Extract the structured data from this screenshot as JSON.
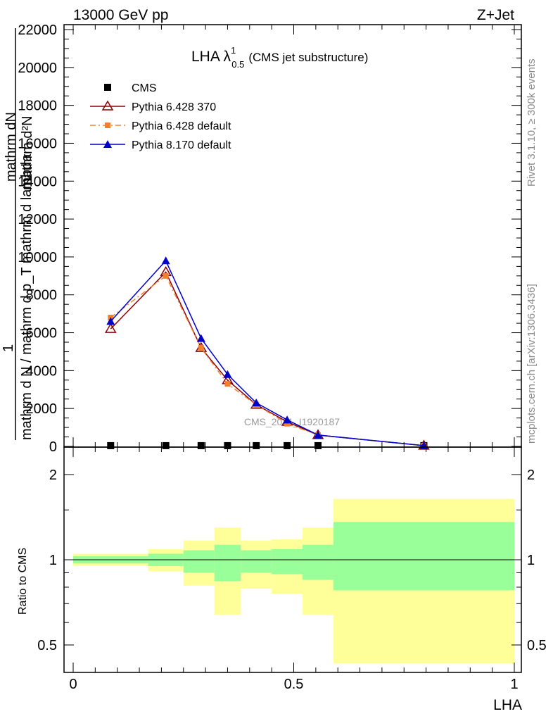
{
  "header": {
    "energy_label": "13000 GeV pp",
    "process_label": "Z+Jet",
    "plot_title_main": "LHA λ",
    "plot_title_sup": "1",
    "plot_title_sub": "0.5",
    "plot_title_note": "(CMS jet substructure)"
  },
  "side_labels": {
    "rivet": "Rivet 3.1.10, ≥ 300k events",
    "mcplots": "mcplots.cern.ch [arXiv:1306.3436]"
  },
  "watermark": "CMS_2021_I1920187",
  "ylabel_top": {
    "line1": "mathrm d²N",
    "line2": "1",
    "numerator": "mathrm dN",
    "denominator": "mathrm d N / mathrm d p_T mathrm d lambda"
  },
  "ylabel_ratio": "Ratio to CMS",
  "xlabel": "LHA",
  "legend": [
    {
      "name": "CMS",
      "marker": "square",
      "color": "#000000",
      "line": "none"
    },
    {
      "name": "Pythia 6.428 370",
      "marker": "open-triangle",
      "color": "#8b0000",
      "line": "solid"
    },
    {
      "name": "Pythia 6.428 default",
      "marker": "square-small",
      "color": "#f08030",
      "line": "dashdot"
    },
    {
      "name": "Pythia 8.170 default",
      "marker": "triangle",
      "color": "#0000cc",
      "line": "solid"
    }
  ],
  "chart_data": [
    {
      "type": "line",
      "xlim": [
        0,
        1
      ],
      "ylim": [
        0,
        22000
      ],
      "y_tick_labels": [
        "0",
        "2000",
        "4000",
        "6000",
        "8000",
        "10000",
        "12000",
        "14000",
        "16000",
        "18000",
        "20000",
        "22000"
      ],
      "y_ticks": [
        0,
        2000,
        4000,
        6000,
        8000,
        10000,
        12000,
        14000,
        16000,
        18000,
        20000,
        22000
      ],
      "x": [
        0.085,
        0.21,
        0.29,
        0.35,
        0.415,
        0.485,
        0.555,
        0.795
      ],
      "series": [
        {
          "name": "CMS",
          "values": [
            40,
            40,
            40,
            40,
            40,
            40,
            40,
            40
          ],
          "color": "#000000"
        },
        {
          "name": "Pythia 6.428 370",
          "values": [
            6200,
            9200,
            5200,
            3500,
            2200,
            1300,
            600,
            40
          ],
          "color": "#8b0000"
        },
        {
          "name": "Pythia 6.428 default",
          "values": [
            6800,
            9000,
            5200,
            3300,
            2200,
            1200,
            600,
            40
          ],
          "color": "#f08030"
        },
        {
          "name": "Pythia 8.170 default",
          "values": [
            6600,
            9800,
            5700,
            3800,
            2300,
            1400,
            600,
            40
          ],
          "color": "#0000cc"
        }
      ]
    },
    {
      "type": "area",
      "xlim": [
        0,
        1
      ],
      "ylim": [
        0.4,
        2.25
      ],
      "y_tick_labels": [
        "0.5",
        "1",
        "2"
      ],
      "y_ticks": [
        0.5,
        1,
        2
      ],
      "x_tick_labels": [
        "0",
        "0.5",
        "1"
      ],
      "x_ticks": [
        0,
        0.5,
        1
      ],
      "bin_edges": [
        0,
        0.17,
        0.25,
        0.32,
        0.38,
        0.45,
        0.52,
        0.59,
        1.0
      ],
      "bands": [
        {
          "color": "#ffff99",
          "low": [
            0.95,
            0.91,
            0.81,
            0.64,
            0.79,
            0.76,
            0.64,
            0.43
          ],
          "high": [
            1.05,
            1.09,
            1.17,
            1.3,
            1.17,
            1.18,
            1.3,
            1.64
          ]
        },
        {
          "color": "#99ff99",
          "low": [
            0.97,
            0.95,
            0.9,
            0.84,
            0.9,
            0.89,
            0.85,
            0.78
          ],
          "high": [
            1.03,
            1.05,
            1.08,
            1.13,
            1.08,
            1.09,
            1.13,
            1.36
          ]
        }
      ],
      "reference": 1
    }
  ]
}
